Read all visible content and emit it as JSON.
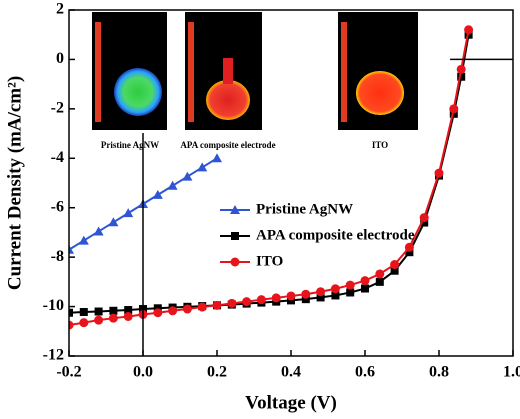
{
  "chart_data": {
    "type": "line",
    "x_label": "Voltage (V)",
    "y_label": "Current Density (mA/cm²)",
    "xlim": [
      -0.2,
      1.0
    ],
    "xticks": [
      -0.2,
      {
        "value": 0,
        "label": "0.0"
      },
      0.2,
      0.4,
      0.6,
      0.8,
      {
        "value": 1,
        "label": "1.0"
      }
    ],
    "ylim": [
      -12,
      2
    ],
    "yticks": [
      -12,
      -10,
      -8,
      -6,
      -4,
      -2,
      0,
      2
    ],
    "insets": [
      "Pristine AgNW",
      "APA composite electrode",
      "ITO"
    ],
    "series": [
      {
        "name": "Pristine AgNW",
        "color": "#2f55d4",
        "marker": "triangle",
        "x": [
          -0.2,
          -0.16,
          -0.12,
          -0.08,
          -0.04,
          0,
          0.04,
          0.08,
          0.12,
          0.16,
          0.2
        ],
        "values": [
          -7.7,
          -7.33,
          -6.96,
          -6.59,
          -6.22,
          -5.85,
          -5.48,
          -5.11,
          -4.74,
          -4.37,
          -4.0
        ]
      },
      {
        "name": "APA composite electrode",
        "color": "#000000",
        "marker": "square",
        "x": [
          -0.2,
          -0.16,
          -0.12,
          -0.08,
          -0.04,
          0,
          0.04,
          0.08,
          0.12,
          0.16,
          0.2,
          0.24,
          0.28,
          0.32,
          0.36,
          0.4,
          0.44,
          0.48,
          0.52,
          0.56,
          0.6,
          0.64,
          0.68,
          0.72,
          0.76,
          0.8,
          0.84,
          0.86,
          0.88
        ],
        "values": [
          -10.25,
          -10.22,
          -10.2,
          -10.17,
          -10.14,
          -10.1,
          -10.07,
          -10.04,
          -10.01,
          -9.98,
          -9.95,
          -9.92,
          -9.88,
          -9.84,
          -9.8,
          -9.75,
          -9.7,
          -9.63,
          -9.55,
          -9.43,
          -9.27,
          -9.0,
          -8.55,
          -7.8,
          -6.6,
          -4.7,
          -2.2,
          -0.7,
          1.0
        ]
      },
      {
        "name": "ITO",
        "color": "#e8141b",
        "marker": "circle",
        "x": [
          -0.2,
          -0.16,
          -0.12,
          -0.08,
          -0.04,
          0,
          0.04,
          0.08,
          0.12,
          0.16,
          0.2,
          0.24,
          0.28,
          0.32,
          0.36,
          0.4,
          0.44,
          0.48,
          0.52,
          0.56,
          0.6,
          0.64,
          0.68,
          0.72,
          0.76,
          0.8,
          0.84,
          0.86,
          0.88
        ],
        "values": [
          -10.75,
          -10.65,
          -10.55,
          -10.47,
          -10.4,
          -10.32,
          -10.25,
          -10.17,
          -10.1,
          -10.02,
          -9.95,
          -9.87,
          -9.8,
          -9.72,
          -9.65,
          -9.57,
          -9.5,
          -9.4,
          -9.28,
          -9.13,
          -8.95,
          -8.68,
          -8.3,
          -7.6,
          -6.4,
          -4.6,
          -2.0,
          -0.4,
          1.2
        ]
      }
    ]
  }
}
